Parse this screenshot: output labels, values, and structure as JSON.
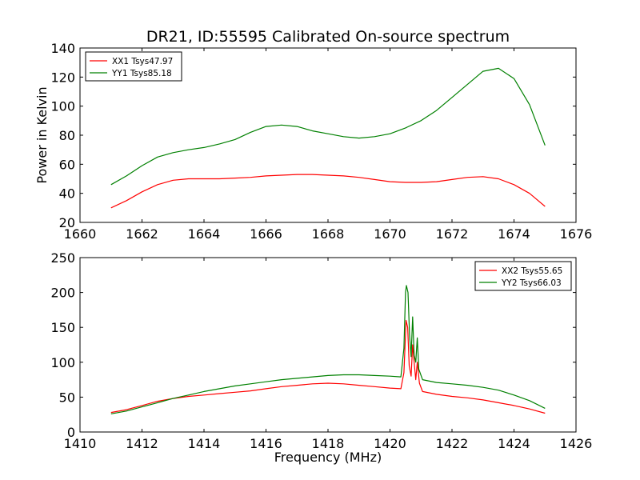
{
  "chart_data": [
    {
      "type": "line",
      "title": "DR21, ID:55595 Calibrated On-source spectrum",
      "xlabel": "",
      "ylabel": "Power in Kelvin",
      "xlim": [
        1660,
        1676
      ],
      "ylim": [
        20,
        140
      ],
      "xticks": [
        1660,
        1662,
        1664,
        1666,
        1668,
        1670,
        1672,
        1674,
        1676
      ],
      "yticks": [
        20,
        40,
        60,
        80,
        100,
        120,
        140
      ],
      "legend_position": "top-left",
      "series": [
        {
          "name": "XX1 Tsys47.97",
          "color": "#ff0000",
          "points": [
            [
              1661.0,
              30
            ],
            [
              1661.5,
              35
            ],
            [
              1662.0,
              41
            ],
            [
              1662.5,
              46
            ],
            [
              1663.0,
              49
            ],
            [
              1663.5,
              50
            ],
            [
              1664.0,
              50
            ],
            [
              1664.5,
              50
            ],
            [
              1665.0,
              50.5
            ],
            [
              1665.5,
              51
            ],
            [
              1666.0,
              52
            ],
            [
              1666.5,
              52.5
            ],
            [
              1667.0,
              53
            ],
            [
              1667.5,
              53
            ],
            [
              1668.0,
              52.5
            ],
            [
              1668.5,
              52
            ],
            [
              1669.0,
              51
            ],
            [
              1669.5,
              49.5
            ],
            [
              1670.0,
              48
            ],
            [
              1670.5,
              47.5
            ],
            [
              1671.0,
              47.5
            ],
            [
              1671.5,
              48
            ],
            [
              1672.0,
              49.5
            ],
            [
              1672.5,
              51
            ],
            [
              1673.0,
              51.5
            ],
            [
              1673.5,
              50
            ],
            [
              1674.0,
              46
            ],
            [
              1674.5,
              40
            ],
            [
              1675.0,
              31
            ]
          ]
        },
        {
          "name": "YY1 Tsys85.18",
          "color": "#008000",
          "points": [
            [
              1661.0,
              46
            ],
            [
              1661.5,
              52
            ],
            [
              1662.0,
              59
            ],
            [
              1662.5,
              65
            ],
            [
              1663.0,
              68
            ],
            [
              1663.5,
              70
            ],
            [
              1664.0,
              71.5
            ],
            [
              1664.5,
              74
            ],
            [
              1665.0,
              77
            ],
            [
              1665.5,
              82
            ],
            [
              1666.0,
              86
            ],
            [
              1666.5,
              87
            ],
            [
              1667.0,
              86
            ],
            [
              1667.5,
              83
            ],
            [
              1668.0,
              81
            ],
            [
              1668.5,
              79
            ],
            [
              1669.0,
              78
            ],
            [
              1669.5,
              79
            ],
            [
              1670.0,
              81
            ],
            [
              1670.5,
              85
            ],
            [
              1671.0,
              90
            ],
            [
              1671.5,
              97
            ],
            [
              1672.0,
              106
            ],
            [
              1672.5,
              115
            ],
            [
              1673.0,
              124
            ],
            [
              1673.5,
              126
            ],
            [
              1674.0,
              119
            ],
            [
              1674.5,
              101
            ],
            [
              1675.0,
              73
            ]
          ]
        }
      ]
    },
    {
      "type": "line",
      "title": "",
      "xlabel": "Frequency (MHz)",
      "ylabel": "",
      "xlim": [
        1410,
        1426
      ],
      "ylim": [
        0,
        250
      ],
      "xticks": [
        1410,
        1412,
        1414,
        1416,
        1418,
        1420,
        1422,
        1424,
        1426
      ],
      "yticks": [
        0,
        50,
        100,
        150,
        200,
        250
      ],
      "legend_position": "top-right",
      "series": [
        {
          "name": "XX2 Tsys55.65",
          "color": "#ff0000",
          "points": [
            [
              1411.0,
              28
            ],
            [
              1411.5,
              32
            ],
            [
              1412.0,
              38
            ],
            [
              1412.5,
              44
            ],
            [
              1413.0,
              48
            ],
            [
              1413.5,
              51
            ],
            [
              1414.0,
              53
            ],
            [
              1414.5,
              55
            ],
            [
              1415.0,
              57
            ],
            [
              1415.5,
              59
            ],
            [
              1416.0,
              62
            ],
            [
              1416.5,
              65
            ],
            [
              1417.0,
              67
            ],
            [
              1417.5,
              69
            ],
            [
              1418.0,
              70
            ],
            [
              1418.5,
              69
            ],
            [
              1419.0,
              67
            ],
            [
              1419.5,
              65
            ],
            [
              1420.0,
              63
            ],
            [
              1420.35,
              62
            ],
            [
              1420.45,
              85
            ],
            [
              1420.52,
              160
            ],
            [
              1420.57,
              150
            ],
            [
              1420.62,
              95
            ],
            [
              1420.68,
              80
            ],
            [
              1420.73,
              125
            ],
            [
              1420.78,
              100
            ],
            [
              1420.83,
              75
            ],
            [
              1420.88,
              100
            ],
            [
              1420.95,
              70
            ],
            [
              1421.05,
              58
            ],
            [
              1421.5,
              54
            ],
            [
              1422.0,
              51
            ],
            [
              1422.5,
              49
            ],
            [
              1423.0,
              46
            ],
            [
              1423.5,
              42
            ],
            [
              1424.0,
              38
            ],
            [
              1424.5,
              33
            ],
            [
              1425.0,
              27
            ]
          ]
        },
        {
          "name": "YY2 Tsys66.03",
          "color": "#008000",
          "points": [
            [
              1411.0,
              26
            ],
            [
              1411.5,
              30
            ],
            [
              1412.0,
              36
            ],
            [
              1412.5,
              42
            ],
            [
              1413.0,
              48
            ],
            [
              1413.5,
              53
            ],
            [
              1414.0,
              58
            ],
            [
              1414.5,
              62
            ],
            [
              1415.0,
              66
            ],
            [
              1415.5,
              69
            ],
            [
              1416.0,
              72
            ],
            [
              1416.5,
              75
            ],
            [
              1417.0,
              77
            ],
            [
              1417.5,
              79
            ],
            [
              1418.0,
              81
            ],
            [
              1418.5,
              82
            ],
            [
              1419.0,
              82
            ],
            [
              1419.5,
              81
            ],
            [
              1420.0,
              80
            ],
            [
              1420.35,
              79
            ],
            [
              1420.45,
              120
            ],
            [
              1420.5,
              200
            ],
            [
              1420.53,
              210
            ],
            [
              1420.58,
              200
            ],
            [
              1420.63,
              140
            ],
            [
              1420.68,
              108
            ],
            [
              1420.73,
              165
            ],
            [
              1420.78,
              110
            ],
            [
              1420.83,
              100
            ],
            [
              1420.88,
              135
            ],
            [
              1420.93,
              90
            ],
            [
              1421.05,
              75
            ],
            [
              1421.5,
              71
            ],
            [
              1422.0,
              69
            ],
            [
              1422.5,
              67
            ],
            [
              1423.0,
              64
            ],
            [
              1423.5,
              60
            ],
            [
              1424.0,
              53
            ],
            [
              1424.5,
              45
            ],
            [
              1425.0,
              34
            ]
          ]
        }
      ]
    }
  ]
}
